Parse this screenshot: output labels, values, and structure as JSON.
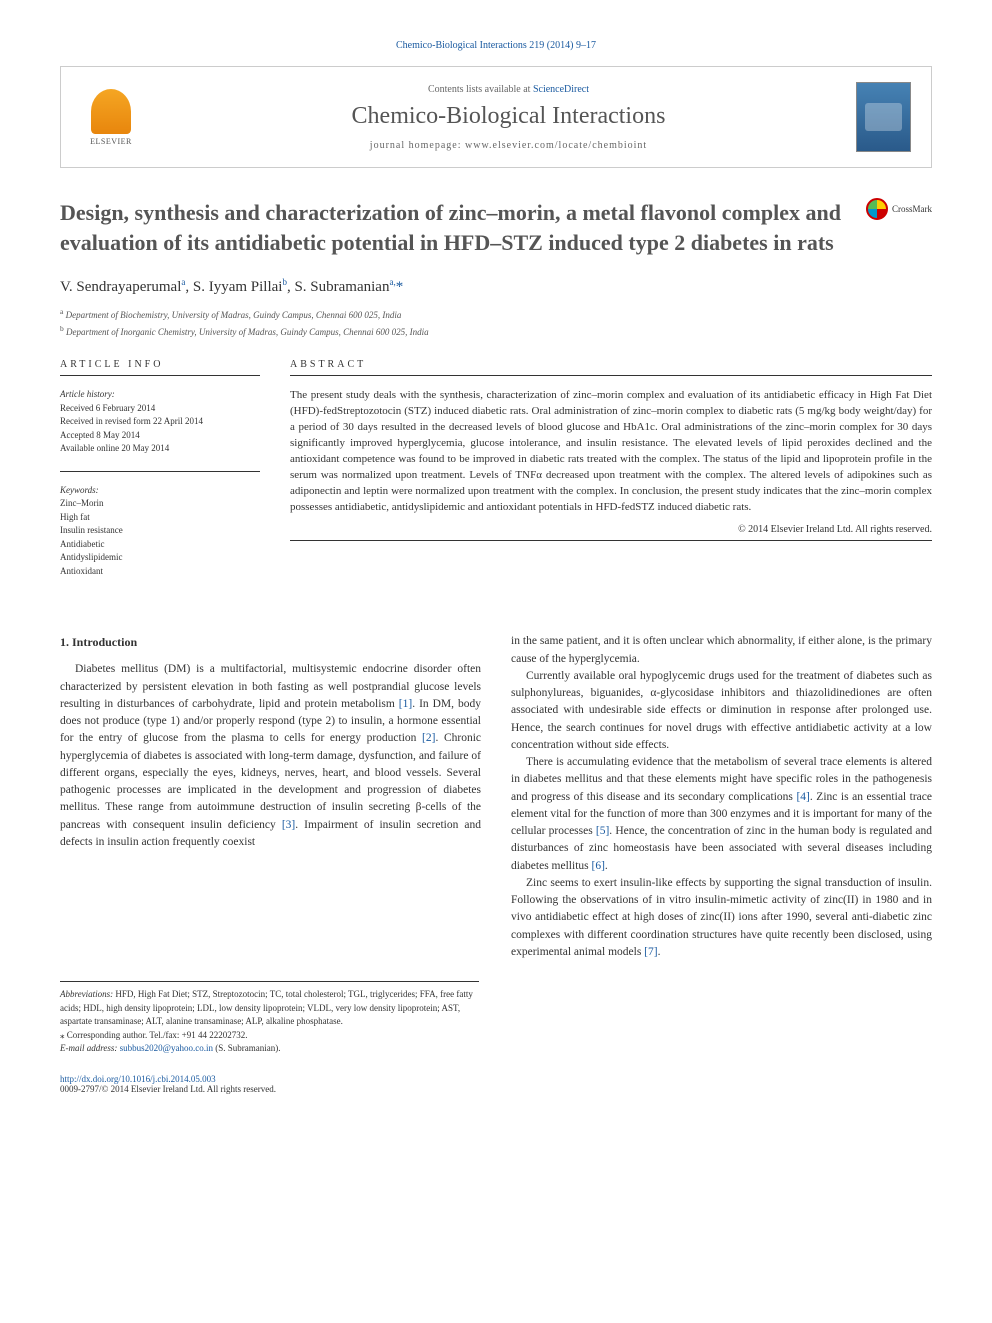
{
  "citation": "Chemico-Biological Interactions 219 (2014) 9–17",
  "header": {
    "contents_prefix": "Contents lists available at ",
    "contents_link": "ScienceDirect",
    "journal": "Chemico-Biological Interactions",
    "homepage_prefix": "journal homepage: ",
    "homepage_url": "www.elsevier.com/locate/chembioint",
    "publisher": "ELSEVIER"
  },
  "crossmark": "CrossMark",
  "title": "Design, synthesis and characterization of zinc–morin, a metal flavonol complex and evaluation of its antidiabetic potential in HFD–STZ induced type 2 diabetes in rats",
  "authors": [
    {
      "name": "V. Sendrayaperumal",
      "aff": "a"
    },
    {
      "name": "S. Iyyam Pillai",
      "aff": "b"
    },
    {
      "name": "S. Subramanian",
      "aff": "a,",
      "corr": "*"
    }
  ],
  "affiliations": [
    {
      "sup": "a",
      "text": "Department of Biochemistry, University of Madras, Guindy Campus, Chennai 600 025, India"
    },
    {
      "sup": "b",
      "text": "Department of Inorganic Chemistry, University of Madras, Guindy Campus, Chennai 600 025, India"
    }
  ],
  "article_info_head": "ARTICLE INFO",
  "abstract_head": "ABSTRACT",
  "history_label": "Article history:",
  "history": [
    "Received 6 February 2014",
    "Received in revised form 22 April 2014",
    "Accepted 8 May 2014",
    "Available online 20 May 2014"
  ],
  "keywords_label": "Keywords:",
  "keywords": [
    "Zinc–Morin",
    "High fat",
    "Insulin resistance",
    "Antidiabetic",
    "Antidyslipidemic",
    "Antioxidant"
  ],
  "abstract": "The present study deals with the synthesis, characterization of zinc–morin complex and evaluation of its antidiabetic efficacy in High Fat Diet (HFD)-fedStreptozotocin (STZ) induced diabetic rats. Oral administration of zinc–morin complex to diabetic rats (5 mg/kg body weight/day) for a period of 30 days resulted in the decreased levels of blood glucose and HbA1c. Oral administrations of the zinc–morin complex for 30 days significantly improved hyperglycemia, glucose intolerance, and insulin resistance. The elevated levels of lipid peroxides declined and the antioxidant competence was found to be improved in diabetic rats treated with the complex. The status of the lipid and lipoprotein profile in the serum was normalized upon treatment. Levels of TNFα decreased upon treatment with the complex. The altered levels of adipokines such as adiponectin and leptin were normalized upon treatment with the complex. In conclusion, the present study indicates that the zinc–morin complex possesses antidiabetic, antidyslipidemic and antioxidant potentials in HFD-fedSTZ induced diabetic rats.",
  "abstract_copyright": "© 2014 Elsevier Ireland Ltd. All rights reserved.",
  "intro_head": "1. Introduction",
  "col1": [
    "Diabetes mellitus (DM) is a multifactorial, multisystemic endocrine disorder often characterized by persistent elevation in both fasting as well postprandial glucose levels resulting in disturbances of carbohydrate, lipid and protein metabolism [1]. In DM, body does not produce (type 1) and/or properly respond (type 2) to insulin, a hormone essential for the entry of glucose from the plasma to cells for energy production [2]. Chronic hyperglycemia of diabetes is associated with long-term damage, dysfunction, and failure of different organs, especially the eyes, kidneys, nerves, heart, and blood vessels. Several pathogenic processes are implicated in the development and progression of diabetes mellitus. These range from autoimmune destruction of insulin secreting β-cells of the pancreas with consequent insulin deficiency [3]. Impairment of insulin secretion and defects in insulin action frequently coexist"
  ],
  "col2": [
    "in the same patient, and it is often unclear which abnormality, if either alone, is the primary cause of the hyperglycemia.",
    "Currently available oral hypoglycemic drugs used for the treatment of diabetes such as sulphonylureas, biguanides, α-glycosidase inhibitors and thiazolidinediones are often associated with undesirable side effects or diminution in response after prolonged use. Hence, the search continues for novel drugs with effective antidiabetic activity at a low concentration without side effects.",
    "There is accumulating evidence that the metabolism of several trace elements is altered in diabetes mellitus and that these elements might have specific roles in the pathogenesis and progress of this disease and its secondary complications [4]. Zinc is an essential trace element vital for the function of more than 300 enzymes and it is important for many of the cellular processes [5]. Hence, the concentration of zinc in the human body is regulated and disturbances of zinc homeostasis have been associated with several diseases including diabetes mellitus [6].",
    "Zinc seems to exert insulin-like effects by supporting the signal transduction of insulin. Following the observations of in vitro insulin-mimetic activity of zinc(II) in 1980 and in vivo antidiabetic effect at high doses of zinc(II) ions after 1990, several anti-diabetic zinc complexes with different coordination structures have quite recently been disclosed, using experimental animal models [7]."
  ],
  "footnotes": {
    "abbrev_label": "Abbreviations:",
    "abbrev": " HFD, High Fat Diet; STZ, Streptozotocin; TC, total cholesterol; TGL, triglycerides; FFA, free fatty acids; HDL, high density lipoprotein; LDL, low density lipoprotein; VLDL, very low density lipoprotein; AST, aspartate transaminase; ALT, alanine transaminase; ALP, alkaline phosphatase.",
    "corr_label": "⁎ Corresponding author. Tel./fax: +91 44 22202732.",
    "email_label": "E-mail address:",
    "email": "subbus2020@yahoo.co.in",
    "email_suffix": " (S. Subramanian)."
  },
  "doi_label": "http://dx.doi.org/10.1016/j.cbi.2014.05.003",
  "issn_line": "0009-2797/© 2014 Elsevier Ireland Ltd. All rights reserved."
}
